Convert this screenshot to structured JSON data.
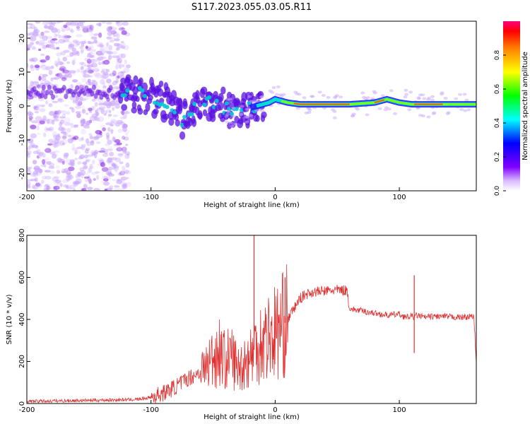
{
  "title": "S117.2023.055.03.05.R11",
  "chart_data": [
    {
      "type": "heatmap",
      "xlabel": "Height of straight line (km)",
      "ylabel": "Frequency (Hz)",
      "xlim": [
        -200,
        162
      ],
      "ylim": [
        -25,
        25
      ],
      "xticks": [
        -200,
        -100,
        0,
        100
      ],
      "yticks": [
        -20,
        -10,
        0,
        10,
        20
      ],
      "colorbar": {
        "label": "Normalized spectral amplitude",
        "range": [
          0,
          1
        ],
        "ticks": [
          "0.0",
          "0.2",
          "0.4",
          "0.6",
          "0.8"
        ]
      },
      "ridge": {
        "x": [
          -125,
          -110,
          -95,
          -85,
          -75,
          -65,
          -55,
          -45,
          -35,
          -25,
          -15,
          -5,
          0,
          10,
          20,
          40,
          60,
          80,
          90,
          100,
          110,
          130,
          162
        ],
        "y": [
          4,
          3.5,
          2,
          0,
          -4,
          -1,
          1,
          0,
          -2,
          -1,
          0,
          1,
          2,
          1,
          0.5,
          0.5,
          0.5,
          1,
          2,
          1,
          0.5,
          0.5,
          0.5
        ]
      }
    },
    {
      "type": "line",
      "xlabel": "Height of straight line (km)",
      "ylabel": "SNR (10 * v/v)",
      "xlim": [
        -200,
        162
      ],
      "ylim": [
        0,
        800
      ],
      "xticks": [
        -200,
        -100,
        0,
        100
      ],
      "yticks": [
        0,
        200,
        400,
        600,
        800
      ],
      "color": "#e03030",
      "series": [
        {
          "x": [
            -200,
            -180,
            -160,
            -140,
            -120,
            -110,
            -100,
            -90,
            -80,
            -75,
            -70,
            -60,
            -55,
            -50,
            -45,
            -40,
            -35,
            -30,
            -25,
            -20,
            -15,
            -10,
            -5,
            0,
            5,
            10,
            15,
            20,
            25,
            30,
            40,
            50,
            58,
            60,
            70,
            80,
            90,
            100,
            105,
            110,
            112,
            114,
            120,
            130,
            140,
            150,
            160,
            162
          ],
          "y": [
            10,
            12,
            14,
            16,
            18,
            20,
            30,
            50,
            80,
            100,
            120,
            150,
            180,
            220,
            250,
            200,
            230,
            160,
            200,
            220,
            280,
            300,
            320,
            340,
            360,
            400,
            450,
            500,
            520,
            530,
            535,
            540,
            538,
            450,
            440,
            430,
            420,
            425,
            410,
            415,
            410,
            420,
            410,
            415,
            412,
            410,
            414,
            200
          ]
        }
      ],
      "spikes": [
        {
          "x": -17,
          "y": 800
        },
        {
          "x": 8,
          "y": 600
        },
        {
          "x": 112,
          "y": 610
        },
        {
          "x": 112,
          "y": 240
        }
      ]
    }
  ]
}
